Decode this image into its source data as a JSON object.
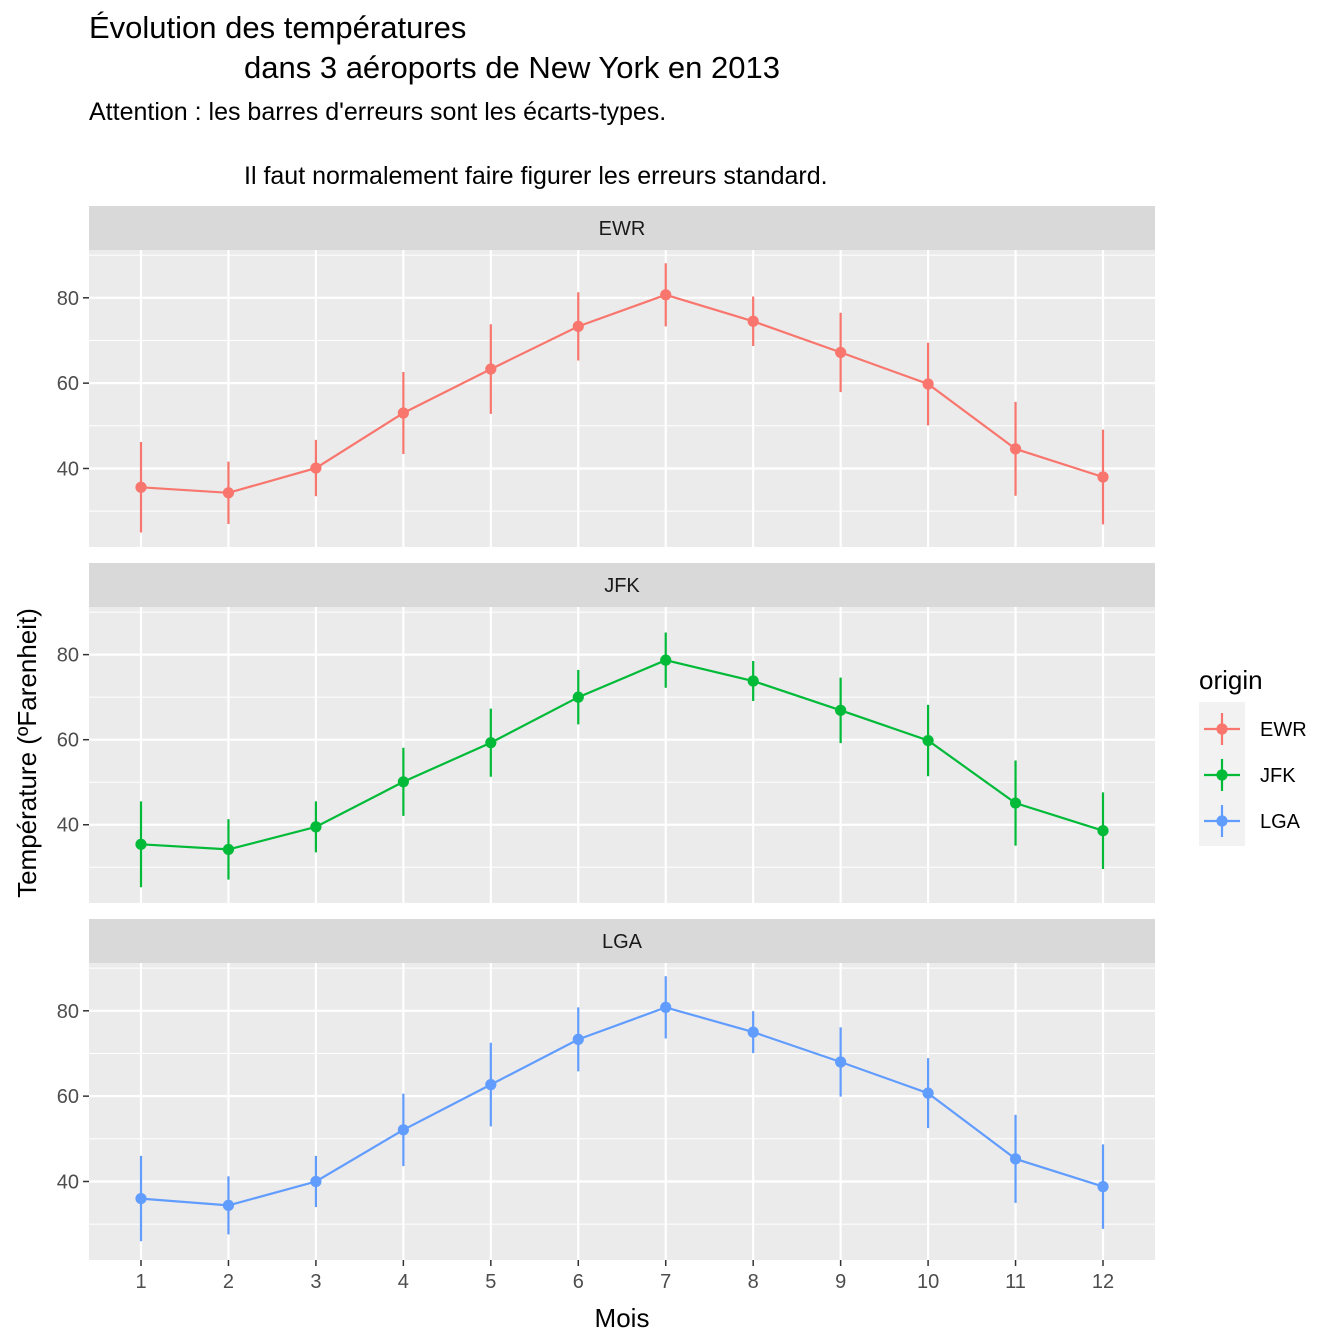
{
  "chart_data": {
    "type": "line",
    "title": [
      "Évolution des températures",
      "dans 3 aéroports de New York en 2013"
    ],
    "subtitle": [
      "Attention : les barres d'erreurs sont les écarts-types.",
      "Il faut normalement faire figurer les erreurs standard."
    ],
    "xlabel": "Mois",
    "ylabel": "Température (ºFarenheit)",
    "x": [
      1,
      2,
      3,
      4,
      5,
      6,
      7,
      8,
      9,
      10,
      11,
      12
    ],
    "x_tick_labels": [
      "1",
      "2",
      "3",
      "4",
      "5",
      "6",
      "7",
      "8",
      "9",
      "10",
      "11",
      "12"
    ],
    "y_ticks": [
      40,
      60,
      80
    ],
    "y_tick_labels": [
      "40",
      "60",
      "80"
    ],
    "ylim": [
      21.6,
      91.2
    ],
    "error_bars": "standard deviation",
    "grid": true,
    "facets": [
      "EWR",
      "JFK",
      "LGA"
    ],
    "legend": {
      "title": "origin",
      "placement": "right"
    },
    "series": [
      {
        "name": "EWR",
        "color": "#F8766D",
        "values": [
          35.6,
          34.3,
          40.1,
          53.0,
          63.3,
          73.3,
          80.7,
          74.5,
          67.2,
          59.8,
          44.6,
          38.0
        ],
        "sd": [
          10.6,
          7.3,
          6.6,
          9.6,
          10.5,
          8.0,
          7.4,
          5.8,
          9.3,
          9.7,
          11.0,
          11.1
        ]
      },
      {
        "name": "JFK",
        "color": "#00BA38",
        "values": [
          35.4,
          34.2,
          39.5,
          50.1,
          59.3,
          70.0,
          78.7,
          73.8,
          66.9,
          59.8,
          45.1,
          38.6
        ],
        "sd": [
          10.1,
          7.1,
          6.0,
          8.0,
          8.0,
          6.4,
          6.5,
          4.7,
          7.7,
          8.4,
          10.0,
          9.0
        ]
      },
      {
        "name": "LGA",
        "color": "#619CFF",
        "values": [
          36.0,
          34.4,
          40.0,
          52.1,
          62.7,
          73.3,
          80.8,
          75.0,
          68.0,
          60.7,
          45.3,
          38.8
        ],
        "sd": [
          10.0,
          6.8,
          6.0,
          8.5,
          9.8,
          7.5,
          7.3,
          4.9,
          8.1,
          8.2,
          10.3,
          9.9
        ]
      }
    ]
  }
}
